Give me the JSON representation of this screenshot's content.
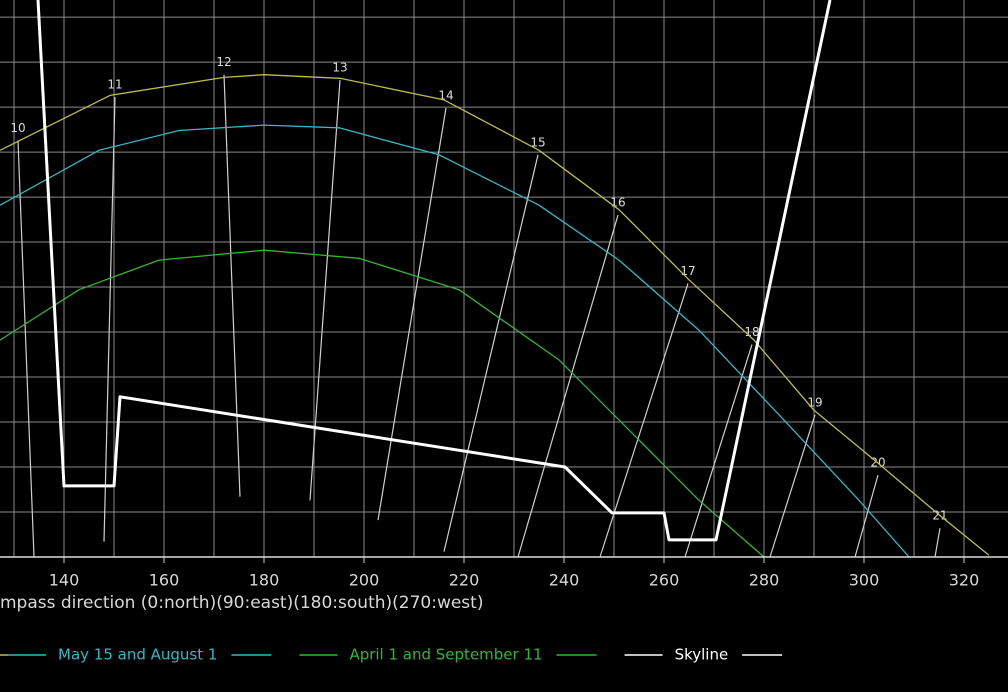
{
  "chart_data": {
    "type": "line",
    "x_label": "mpass direction (0:north)(90:east)(180:south)(270:west)",
    "xlim": [
      127.2,
      328.8
    ],
    "ylim": [
      0,
      61.9
    ],
    "xticks": [
      140,
      160,
      180,
      200,
      220,
      240,
      260,
      280,
      300,
      320
    ],
    "xticks_minor": [
      130,
      150,
      170,
      190,
      210,
      230,
      250,
      270,
      290,
      310
    ],
    "yticks": [
      5,
      10,
      15,
      20,
      25,
      30,
      35,
      40,
      45,
      50,
      55,
      60
    ],
    "grid": true,
    "series": [
      {
        "color": "#bdbd4a",
        "x": [
          127.2,
          149.2,
          172,
          180,
          195.2,
          216,
          235,
          251,
          265,
          278,
          290,
          302,
          315,
          325
        ],
        "values": [
          45.2,
          51.3,
          53.3,
          53.6,
          53.2,
          50.8,
          45.2,
          38.6,
          30.8,
          24.1,
          16.3,
          10.8,
          4.7,
          0.2
        ]
      },
      {
        "name": "May 15 and August 1",
        "color": "#36b8c6",
        "x": [
          127.2,
          147,
          163,
          180,
          195,
          215,
          235,
          251,
          267,
          283,
          299,
          309
        ],
        "values": [
          39.1,
          45.2,
          47.4,
          48,
          47.7,
          44.7,
          39.1,
          33,
          25.2,
          15.8,
          6.3,
          0
        ]
      },
      {
        "name": "April 1 and September 11",
        "color": "#35b535",
        "x": [
          127.2,
          143,
          159,
          180,
          199,
          219,
          239,
          255,
          267,
          280
        ],
        "values": [
          24.1,
          29.7,
          33,
          34.1,
          33.2,
          29.7,
          21.9,
          13,
          6.3,
          0
        ]
      },
      {
        "name": "Skyline",
        "color": "#ffffff",
        "x": [
          134.8,
          140,
          150,
          151.2,
          240.2,
          249.6,
          260,
          261,
          270.4,
          293.2
        ],
        "values": [
          61.9,
          7.9,
          7.9,
          17.8,
          10,
          4.9,
          4.9,
          1.9,
          1.9,
          61.9
        ]
      }
    ],
    "hour_lines": [
      {
        "label": "10",
        "x": [
          130.8,
          134
        ],
        "values": [
          46.3,
          0
        ]
      },
      {
        "label": "11",
        "x": [
          150.2,
          148
        ],
        "values": [
          51.1,
          1.7
        ]
      },
      {
        "label": "12",
        "x": [
          172,
          175.2
        ],
        "values": [
          53.6,
          6.7
        ]
      },
      {
        "label": "13",
        "x": [
          195.2,
          189.2
        ],
        "values": [
          53,
          6.3
        ]
      },
      {
        "label": "14",
        "x": [
          216.4,
          202.8
        ],
        "values": [
          49.9,
          4.1
        ]
      },
      {
        "label": "15",
        "x": [
          234.8,
          216
        ],
        "values": [
          44.7,
          0.6
        ]
      },
      {
        "label": "16",
        "x": [
          250.8,
          230.8
        ],
        "values": [
          38,
          0
        ]
      },
      {
        "label": "17",
        "x": [
          264.8,
          247.2
        ],
        "values": [
          30.4,
          0
        ]
      },
      {
        "label": "18",
        "x": [
          277.6,
          264.2
        ],
        "values": [
          23.6,
          0
        ]
      },
      {
        "label": "19",
        "x": [
          290.2,
          281.2
        ],
        "values": [
          15.8,
          0
        ]
      },
      {
        "label": "20",
        "x": [
          302.8,
          298.2
        ],
        "values": [
          9.1,
          0
        ]
      },
      {
        "label": "21",
        "x": [
          315.2,
          314.2
        ],
        "values": [
          3.2,
          0
        ]
      }
    ]
  }
}
